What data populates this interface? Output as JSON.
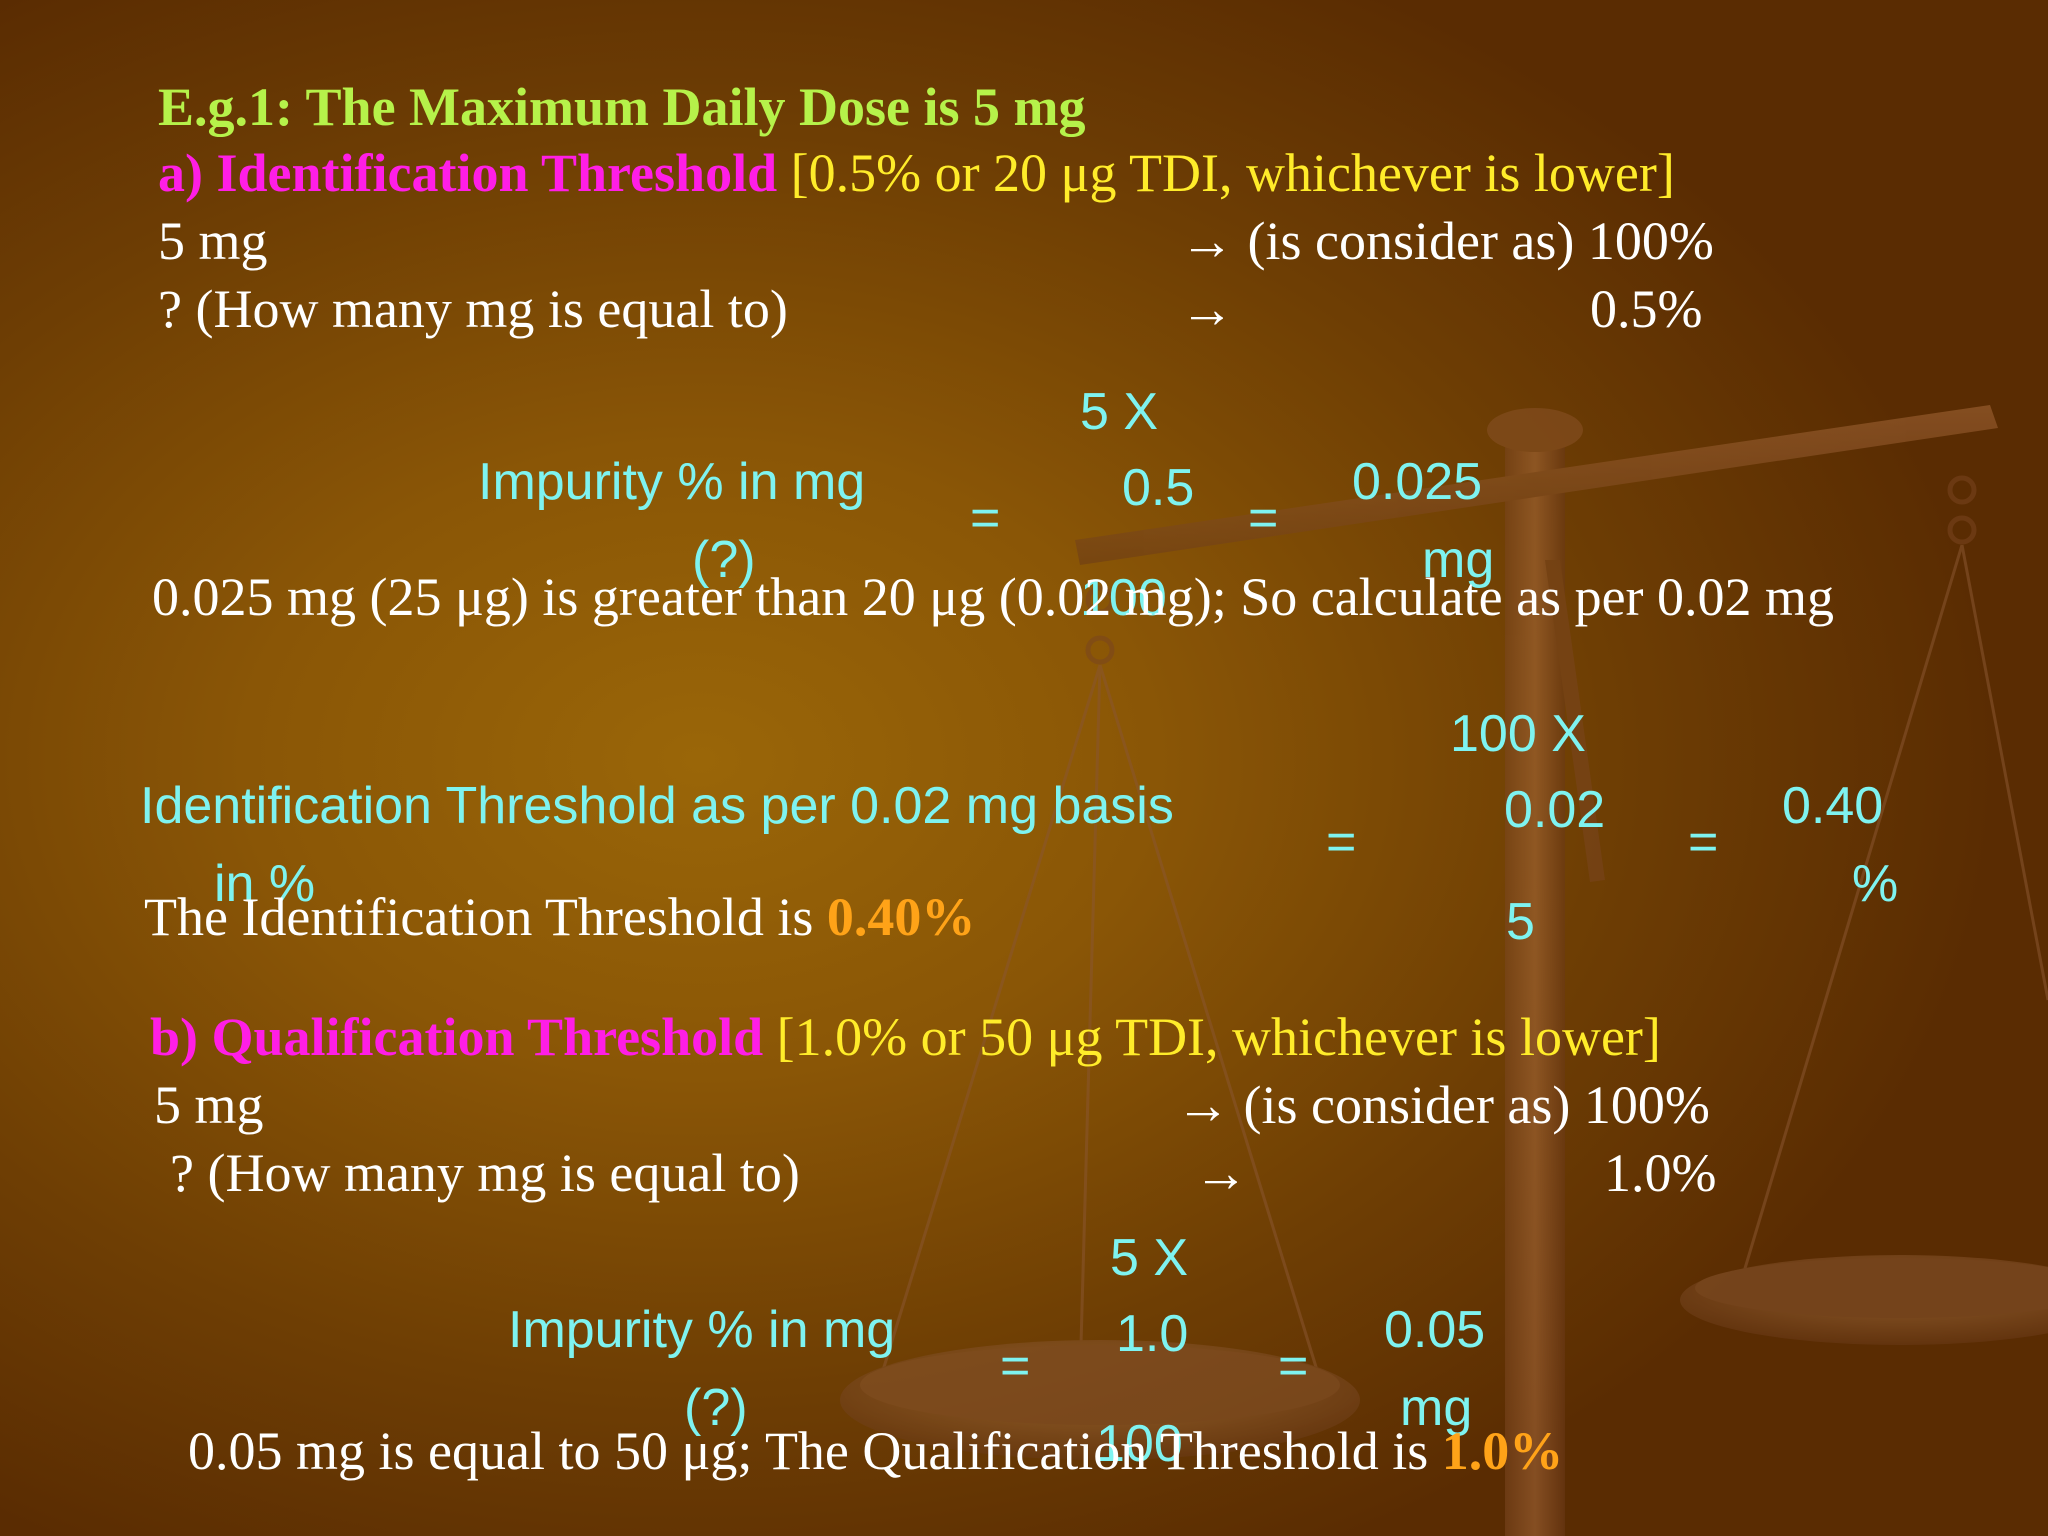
{
  "heading": "E.g.1: The Maximum Daily Dose is 5 mg",
  "section_a": {
    "label": "a) Identification Threshold",
    "rule": "[0.5% or 20 μg TDI, whichever is lower]",
    "line1_left": "5 mg",
    "line1_right": "→ (is consider as) 100%",
    "line2_left": "? (How many mg is equal to)",
    "line2_arrow": "→",
    "line2_value": "0.5%",
    "calc1": {
      "lhs_line1": "Impurity % in mg",
      "lhs_line2": "(?)",
      "eq1": "=",
      "num_top": "5 X",
      "num_mid": "0.5",
      "denom": "100",
      "eq2": "=",
      "result_line1": "0.025",
      "result_line2": "mg"
    },
    "note": "0.025 mg (25 μg) is greater than 20 μg (0.02 mg); So calculate as per 0.02 mg",
    "calc2": {
      "lhs_line1": "Identification Threshold as per 0.02 mg basis",
      "lhs_line2": "in %",
      "eq1": "=",
      "num_top": "100 X",
      "num_mid": "0.02",
      "denom": "5",
      "eq2": "=",
      "result_line1": "0.40",
      "result_line2": "%"
    },
    "conclusion_text": "The Identification Threshold is ",
    "conclusion_value": "0.40%"
  },
  "section_b": {
    "label": "b) Qualification Threshold",
    "rule": "[1.0% or 50 μg TDI, whichever is lower]",
    "line1_left": "5 mg",
    "line1_right": "→ (is consider as) 100%",
    "line2_left": "? (How many mg is equal to)",
    "line2_arrow": "→",
    "line2_value": "1.0%",
    "calc": {
      "lhs_line1": "Impurity % in mg",
      "lhs_line2": "(?)",
      "eq1": "=",
      "num_top": "5 X",
      "num_mid": "1.0",
      "denom": "100",
      "eq2": "=",
      "result_line1": "0.05",
      "result_line2": "mg"
    },
    "conclusion_text": "0.05 mg is equal to 50 μg; The Qualification Threshold is ",
    "conclusion_value": "1.0%"
  },
  "colors": {
    "heading": "#b6f24a",
    "label": "#ff1ee6",
    "rule": "#ffec2a",
    "formula": "#7ef3f0",
    "highlight": "#ffa318",
    "body_text": "#ffffff"
  },
  "background_image": "balance-scale"
}
